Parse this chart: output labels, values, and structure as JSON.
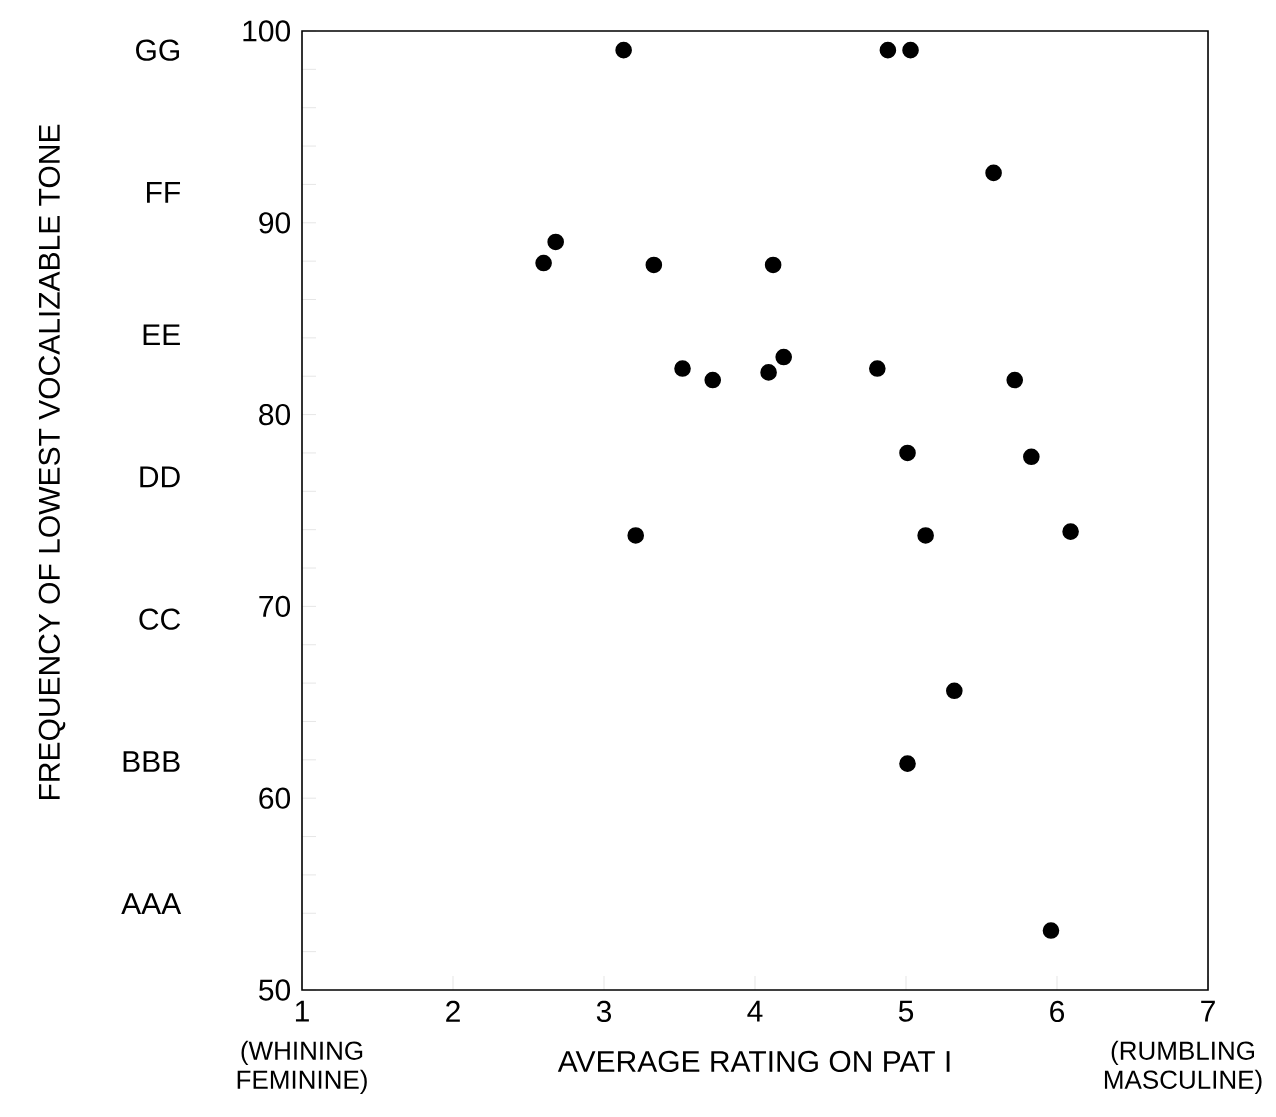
{
  "chart_data": {
    "type": "scatter",
    "xlabel": "AVERAGE RATING ON PAT I",
    "annotations": [
      "(WHINING FEMININE)",
      "(RUMBLING MASCULINE)",
      "GG",
      "FF",
      "EE",
      "DD",
      "CC",
      "BBB",
      "AAA",
      "FREQUENCY OF LOWEST VOCALIZABLE TONE"
    ],
    "xlim": [
      1,
      7
    ],
    "xticks": [
      1,
      2,
      3,
      4,
      5,
      6,
      7
    ],
    "ylim": [
      50,
      100
    ],
    "yticks": [
      50,
      {
        "value": 52,
        "label": null
      },
      {
        "value": 54,
        "label": null
      },
      {
        "value": 56,
        "label": null
      },
      {
        "value": 58,
        "label": null
      },
      60,
      {
        "value": 62,
        "label": null
      },
      {
        "value": 64,
        "label": null
      },
      {
        "value": 66,
        "label": null
      },
      {
        "value": 68,
        "label": null
      },
      70,
      {
        "value": 72,
        "label": null
      },
      {
        "value": 74,
        "label": null
      },
      {
        "value": 76,
        "label": null
      },
      {
        "value": 78,
        "label": null
      },
      80,
      {
        "value": 82,
        "label": null
      },
      {
        "value": 84,
        "label": null
      },
      {
        "value": 86,
        "label": null
      },
      {
        "value": 88,
        "label": null
      },
      90,
      {
        "value": 92,
        "label": null
      },
      {
        "value": 94,
        "label": null
      },
      {
        "value": 96,
        "label": null
      },
      {
        "value": 98,
        "label": null
      },
      100
    ],
    "grid": false,
    "series": [
      {
        "color": "#000000",
        "x": [
          3.13,
          4.88,
          5.03,
          5.58,
          2.6,
          2.68,
          3.33,
          4.12,
          3.52,
          3.72,
          4.09,
          4.19,
          4.81,
          5.72,
          5.01,
          5.83,
          3.21,
          5.13,
          6.09,
          5.32,
          5.01,
          5.96
        ],
        "values": [
          99.0,
          99.0,
          99.0,
          92.6,
          87.9,
          89.0,
          87.8,
          87.8,
          82.4,
          81.8,
          82.2,
          83.0,
          82.4,
          81.8,
          78.0,
          77.8,
          73.7,
          73.7,
          73.9,
          65.6,
          61.8,
          53.1
        ]
      }
    ]
  }
}
